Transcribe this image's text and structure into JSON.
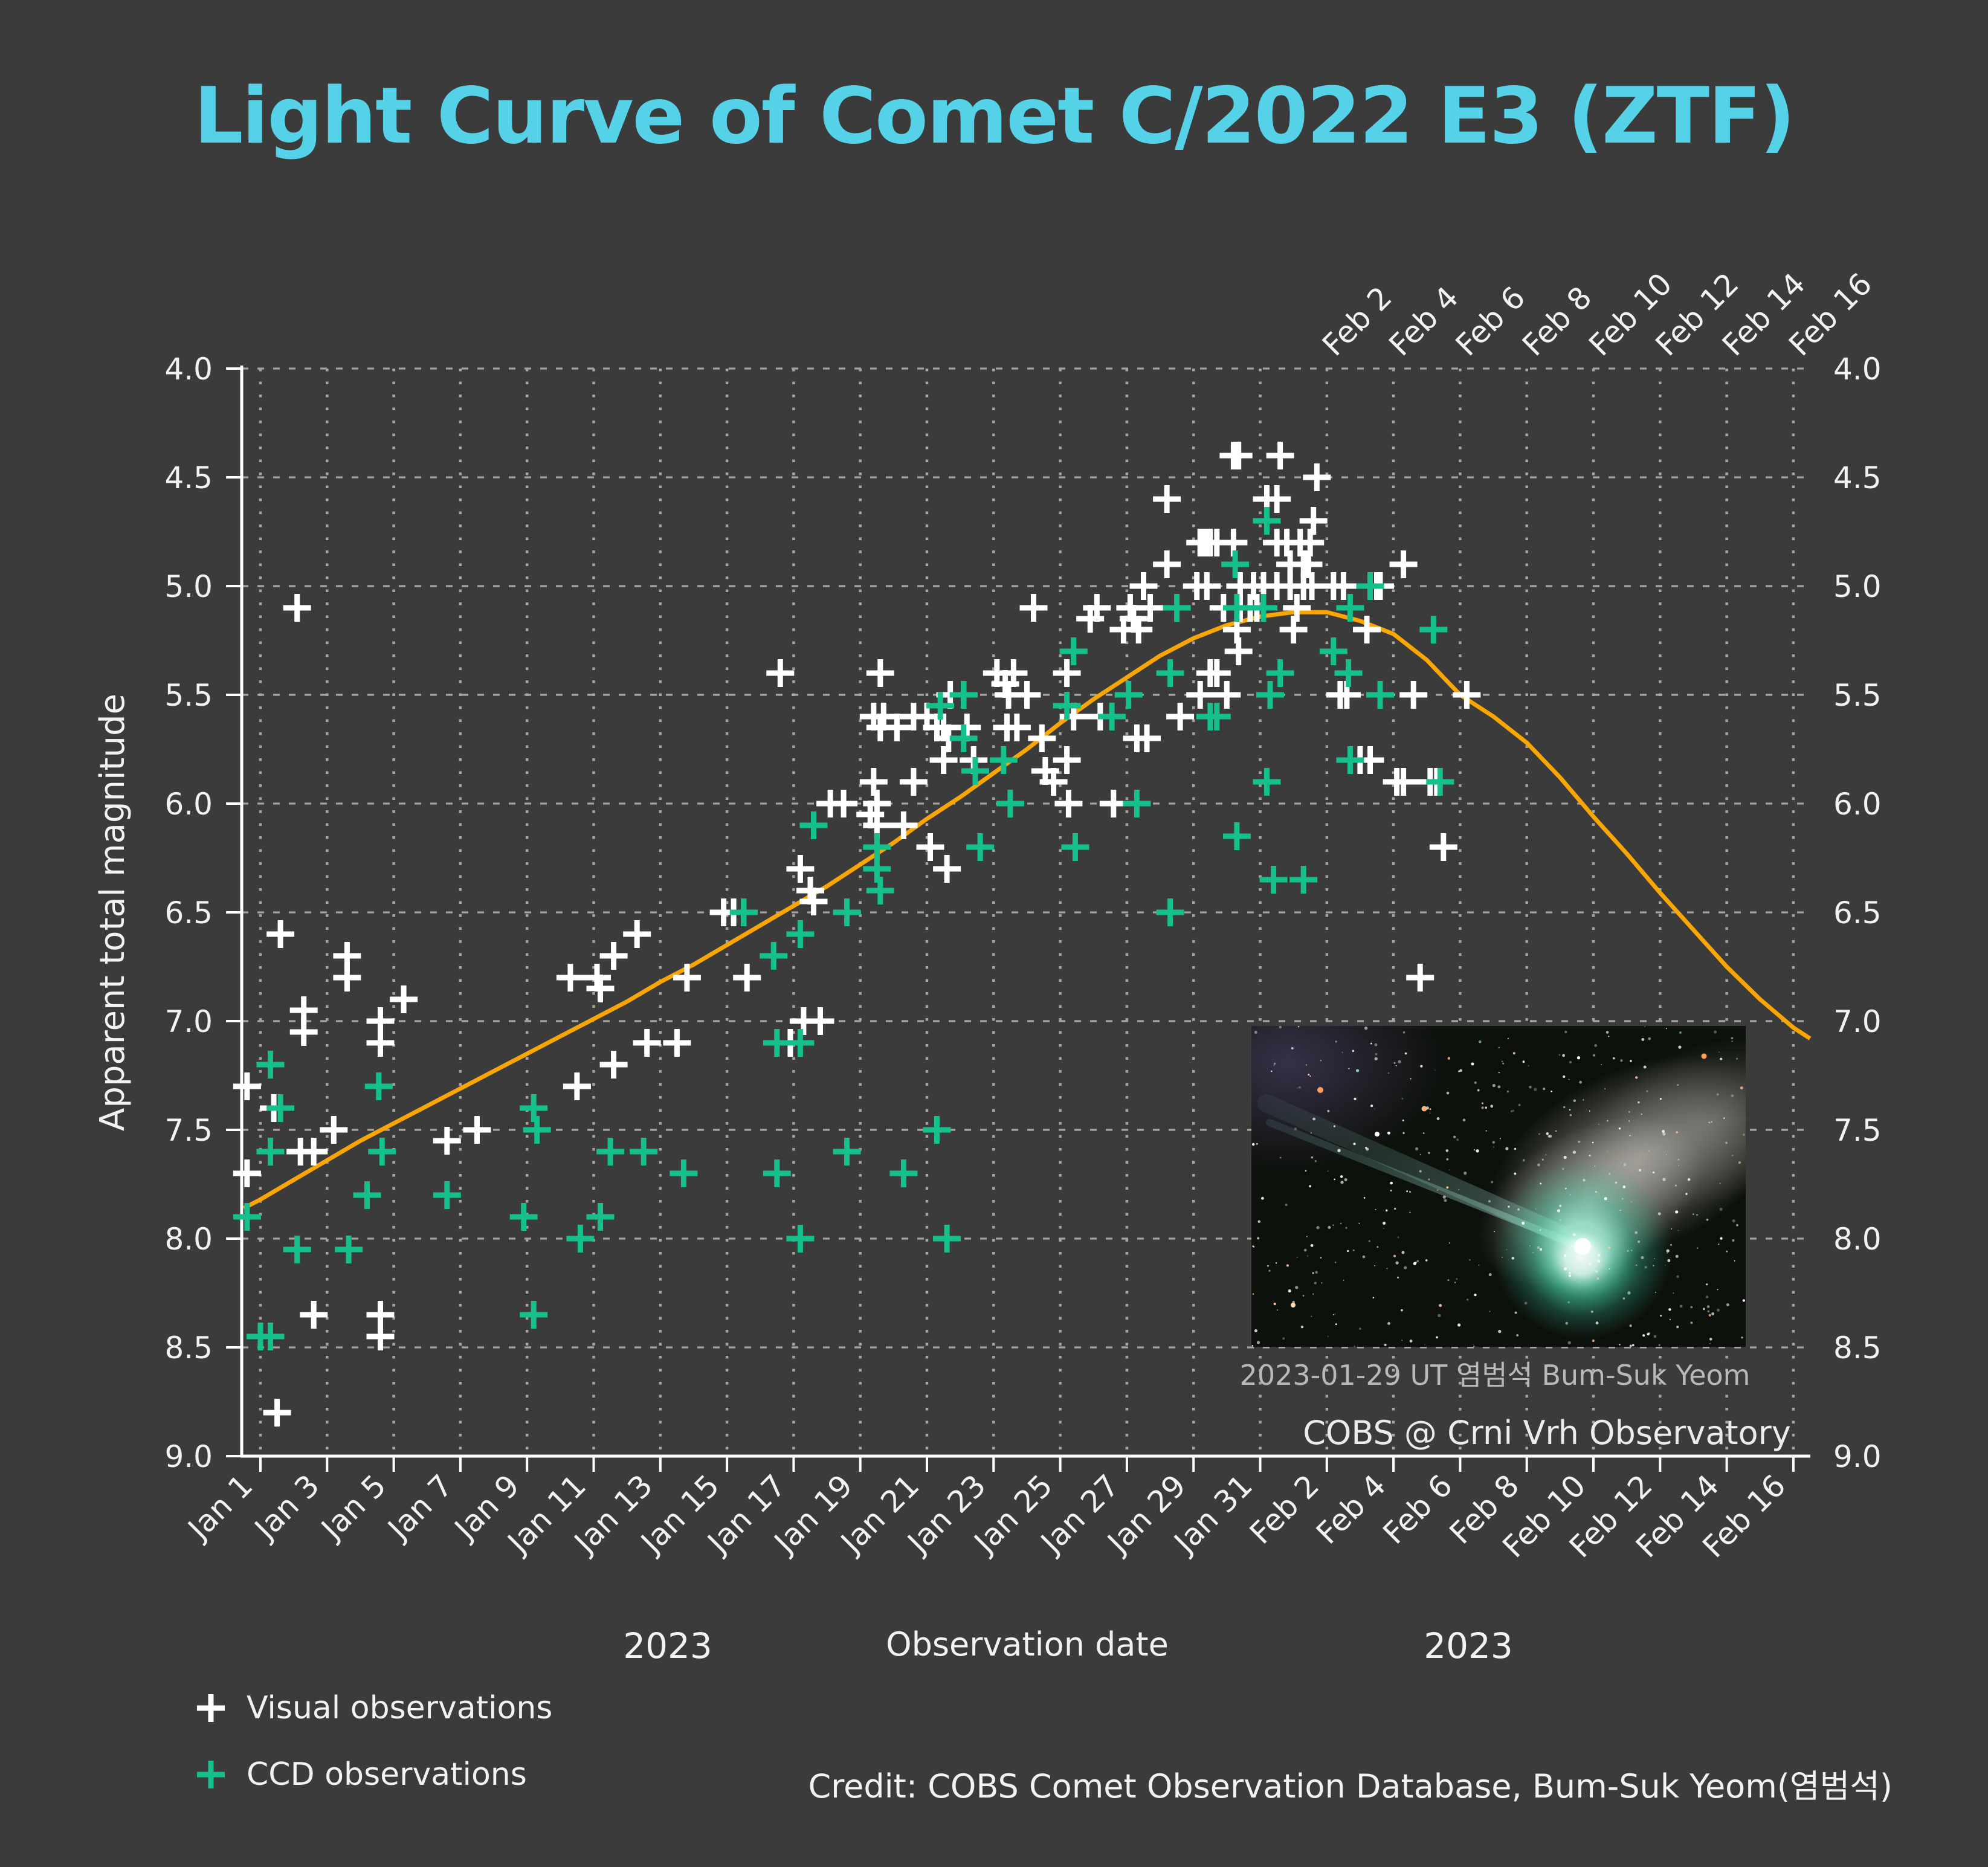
{
  "title": "Light Curve of Comet C/2022 E3 (ZTF)",
  "credit": "Credit: COBS Comet Observation Database, Bum-Suk Yeom(염범석)",
  "legend": [
    {
      "label": "Visual observations",
      "marker": "+",
      "color": "#FFFFFF"
    },
    {
      "label": "CCD observations",
      "marker": "+",
      "color": "#15C08C"
    }
  ],
  "inset": {
    "caption_line1": "2023-01-29 UT  염범석  Bum-Suk Yeom",
    "caption_line2": "COBS @ Crni Vrh Observatory"
  },
  "colors": {
    "background": "#3B3B3B",
    "foreground": "#F2F2F2",
    "grid": "#A8A39C",
    "title": "#55D2E8",
    "visual_marker": "#FFFFFF",
    "ccd_marker": "#15C08C",
    "fit_curve": "#F9A602",
    "caption_gray": "#B9B9B9"
  },
  "chart_data": {
    "type": "scatter",
    "title": "Light Curve of Comet C/2022 E3 (ZTF)",
    "xlabel": "Observation date",
    "ylabel": "Apparent total magnitude",
    "x_unit": "day number of 2023 (Jan 1 = 1, Feb 16 = 47)",
    "xlim": [
      0.44,
      47.56
    ],
    "ylim": [
      9.0,
      4.0
    ],
    "y_axis_inverted": true,
    "grid": true,
    "legend_position": "bottom-left",
    "year_labels": [
      "2023",
      "2023"
    ],
    "x_tick_days": [
      1,
      3,
      5,
      7,
      9,
      11,
      13,
      15,
      17,
      19,
      21,
      23,
      25,
      27,
      29,
      31,
      33,
      35,
      37,
      39,
      41,
      43,
      45,
      47
    ],
    "x_tick_labels": [
      "Jan 1",
      "Jan 3",
      "Jan 5",
      "Jan 7",
      "Jan 9",
      "Jan 11",
      "Jan 13",
      "Jan 15",
      "Jan 17",
      "Jan 19",
      "Jan 21",
      "Jan 23",
      "Jan 25",
      "Jan 27",
      "Jan 29",
      "Jan 31",
      "Feb 2",
      "Feb 4",
      "Feb 6",
      "Feb 8",
      "Feb 10",
      "Feb 12",
      "Feb 14",
      "Feb 16"
    ],
    "top_tick_days": [
      33,
      35,
      37,
      39,
      41,
      43,
      45,
      47
    ],
    "top_tick_labels": [
      "Feb 2",
      "Feb 4",
      "Feb 6",
      "Feb 8",
      "Feb 10",
      "Feb 12",
      "Feb 14",
      "Feb 16"
    ],
    "y_ticks": [
      "4.0",
      "4.5",
      "5.0",
      "5.5",
      "6.0",
      "6.5",
      "7.0",
      "7.5",
      "8.0",
      "8.5",
      "9.0"
    ],
    "series": [
      {
        "name": "Visual observations",
        "marker": "+",
        "color": "#FFFFFF",
        "points": [
          [
            0.6,
            7.3
          ],
          [
            0.6,
            7.7
          ],
          [
            1.4,
            7.4
          ],
          [
            1.5,
            8.8
          ],
          [
            1.6,
            6.6
          ],
          [
            2.1,
            5.1
          ],
          [
            2.2,
            7.6
          ],
          [
            2.3,
            6.95
          ],
          [
            2.3,
            7.05
          ],
          [
            2.6,
            7.6
          ],
          [
            2.6,
            8.35
          ],
          [
            3.2,
            7.5
          ],
          [
            3.6,
            6.7
          ],
          [
            3.6,
            6.8
          ],
          [
            4.6,
            7.0
          ],
          [
            4.6,
            7.1
          ],
          [
            4.6,
            8.35
          ],
          [
            4.6,
            8.45
          ],
          [
            5.3,
            6.9
          ],
          [
            6.6,
            7.55
          ],
          [
            7.5,
            7.5
          ],
          [
            10.3,
            6.8
          ],
          [
            10.5,
            7.3
          ],
          [
            11.1,
            6.8
          ],
          [
            11.2,
            6.85
          ],
          [
            11.6,
            6.7
          ],
          [
            11.6,
            7.2
          ],
          [
            12.3,
            6.6
          ],
          [
            12.6,
            7.1
          ],
          [
            13.5,
            7.1
          ],
          [
            13.8,
            6.8
          ],
          [
            14.9,
            6.5
          ],
          [
            15.2,
            6.5
          ],
          [
            15.5,
            6.5
          ],
          [
            15.6,
            6.8
          ],
          [
            16.6,
            5.4
          ],
          [
            16.9,
            7.1
          ],
          [
            17.2,
            6.3
          ],
          [
            17.3,
            7.0
          ],
          [
            17.5,
            6.4
          ],
          [
            17.6,
            6.45
          ],
          [
            17.8,
            7.0
          ],
          [
            18.1,
            6.0
          ],
          [
            18.5,
            6.0
          ],
          [
            19.3,
            6.05
          ],
          [
            19.4,
            5.6
          ],
          [
            19.4,
            5.9
          ],
          [
            19.5,
            6.0
          ],
          [
            19.5,
            6.1
          ],
          [
            19.6,
            5.4
          ],
          [
            19.6,
            5.65
          ],
          [
            19.7,
            5.6
          ],
          [
            20.1,
            5.65
          ],
          [
            20.3,
            6.1
          ],
          [
            20.6,
            5.6
          ],
          [
            20.6,
            5.9
          ],
          [
            21.0,
            5.6
          ],
          [
            21.1,
            6.2
          ],
          [
            21.3,
            5.65
          ],
          [
            21.5,
            5.65
          ],
          [
            21.5,
            5.8
          ],
          [
            21.65,
            5.7
          ],
          [
            21.7,
            5.5
          ],
          [
            21.6,
            6.3
          ],
          [
            22.1,
            5.5
          ],
          [
            22.2,
            5.65
          ],
          [
            22.4,
            5.8
          ],
          [
            23.1,
            5.4
          ],
          [
            23.35,
            5.45
          ],
          [
            23.4,
            5.65
          ],
          [
            23.45,
            5.5
          ],
          [
            23.6,
            5.4
          ],
          [
            23.7,
            5.65
          ],
          [
            24.0,
            5.5
          ],
          [
            24.2,
            5.1
          ],
          [
            24.45,
            5.7
          ],
          [
            24.55,
            5.85
          ],
          [
            24.8,
            5.9
          ],
          [
            25.2,
            5.4
          ],
          [
            25.2,
            5.8
          ],
          [
            25.25,
            6.0
          ],
          [
            25.4,
            5.6
          ],
          [
            25.9,
            5.15
          ],
          [
            26.1,
            5.1
          ],
          [
            26.2,
            5.6
          ],
          [
            26.6,
            6.0
          ],
          [
            26.9,
            5.2
          ],
          [
            27.1,
            5.1
          ],
          [
            27.2,
            5.15
          ],
          [
            27.35,
            5.2
          ],
          [
            27.5,
            5.0
          ],
          [
            27.7,
            5.1
          ],
          [
            27.3,
            5.7
          ],
          [
            27.6,
            5.7
          ],
          [
            28.2,
            4.6
          ],
          [
            28.2,
            4.9
          ],
          [
            28.6,
            5.6
          ],
          [
            29.1,
            5.0
          ],
          [
            29.2,
            4.8
          ],
          [
            29.35,
            4.8
          ],
          [
            29.5,
            4.8
          ],
          [
            29.2,
            5.5
          ],
          [
            29.4,
            5.0
          ],
          [
            29.5,
            5.4
          ],
          [
            29.7,
            5.4
          ],
          [
            29.7,
            4.8
          ],
          [
            29.9,
            5.1
          ],
          [
            30.0,
            5.5
          ],
          [
            30.2,
            4.4
          ],
          [
            30.35,
            4.4
          ],
          [
            30.2,
            4.8
          ],
          [
            30.3,
            5.2
          ],
          [
            30.35,
            5.3
          ],
          [
            30.4,
            5.0
          ],
          [
            30.4,
            5.1
          ],
          [
            30.7,
            5.1
          ],
          [
            30.8,
            5.0
          ],
          [
            30.9,
            5.1
          ],
          [
            31.1,
            5.0
          ],
          [
            31.2,
            4.6
          ],
          [
            31.5,
            4.6
          ],
          [
            31.6,
            4.4
          ],
          [
            31.5,
            4.8
          ],
          [
            31.8,
            4.8
          ],
          [
            32.2,
            4.8
          ],
          [
            32.5,
            4.8
          ],
          [
            31.9,
            4.9
          ],
          [
            32.3,
            4.9
          ],
          [
            32.45,
            4.9
          ],
          [
            31.5,
            5.0
          ],
          [
            31.9,
            5.0
          ],
          [
            32.3,
            5.0
          ],
          [
            32.55,
            5.0
          ],
          [
            32.0,
            5.2
          ],
          [
            32.1,
            5.1
          ],
          [
            32.6,
            4.7
          ],
          [
            32.7,
            4.5
          ],
          [
            33.2,
            5.0
          ],
          [
            33.4,
            5.5
          ],
          [
            33.5,
            5.0
          ],
          [
            33.6,
            5.5
          ],
          [
            34.0,
            5.8
          ],
          [
            34.2,
            5.2
          ],
          [
            34.3,
            5.8
          ],
          [
            34.5,
            5.0
          ],
          [
            34.6,
            5.0
          ],
          [
            35.1,
            5.9
          ],
          [
            35.3,
            4.9
          ],
          [
            35.3,
            5.9
          ],
          [
            35.6,
            5.5
          ],
          [
            35.8,
            6.8
          ],
          [
            36.1,
            5.9
          ],
          [
            36.3,
            5.9
          ],
          [
            36.5,
            6.2
          ],
          [
            37.2,
            5.5
          ]
        ]
      },
      {
        "name": "CCD observations",
        "marker": "+",
        "color": "#15C08C",
        "points": [
          [
            0.6,
            7.9
          ],
          [
            1.0,
            8.45
          ],
          [
            1.3,
            7.2
          ],
          [
            1.3,
            7.6
          ],
          [
            1.3,
            8.45
          ],
          [
            1.6,
            7.4
          ],
          [
            2.1,
            8.05
          ],
          [
            3.65,
            8.05
          ],
          [
            4.2,
            7.8
          ],
          [
            4.55,
            7.3
          ],
          [
            4.65,
            7.6
          ],
          [
            6.6,
            7.8
          ],
          [
            8.9,
            7.9
          ],
          [
            9.2,
            7.4
          ],
          [
            9.2,
            8.35
          ],
          [
            9.3,
            7.5
          ],
          [
            10.6,
            8.0
          ],
          [
            11.2,
            7.9
          ],
          [
            11.5,
            7.6
          ],
          [
            12.5,
            7.6
          ],
          [
            13.7,
            7.7
          ],
          [
            15.5,
            6.5
          ],
          [
            16.4,
            6.7
          ],
          [
            16.5,
            7.1
          ],
          [
            16.5,
            7.7
          ],
          [
            17.2,
            6.6
          ],
          [
            17.2,
            7.1
          ],
          [
            17.2,
            8.0
          ],
          [
            17.6,
            6.1
          ],
          [
            18.6,
            6.5
          ],
          [
            18.6,
            7.6
          ],
          [
            19.5,
            6.2
          ],
          [
            19.5,
            6.3
          ],
          [
            19.6,
            6.4
          ],
          [
            20.3,
            7.7
          ],
          [
            21.3,
            7.5
          ],
          [
            21.4,
            5.55
          ],
          [
            21.6,
            8.0
          ],
          [
            22.1,
            5.5
          ],
          [
            22.1,
            5.7
          ],
          [
            22.45,
            5.85
          ],
          [
            22.6,
            6.2
          ],
          [
            23.3,
            5.8
          ],
          [
            23.5,
            6.0
          ],
          [
            25.2,
            5.55
          ],
          [
            25.4,
            5.3
          ],
          [
            25.45,
            6.2
          ],
          [
            26.55,
            5.6
          ],
          [
            27.05,
            5.5
          ],
          [
            27.3,
            6.0
          ],
          [
            28.3,
            5.4
          ],
          [
            28.3,
            6.5
          ],
          [
            28.5,
            5.1
          ],
          [
            29.5,
            5.6
          ],
          [
            29.7,
            5.6
          ],
          [
            30.25,
            4.9
          ],
          [
            30.3,
            5.1
          ],
          [
            30.3,
            6.15
          ],
          [
            31.1,
            5.1
          ],
          [
            31.2,
            4.7
          ],
          [
            31.2,
            5.9
          ],
          [
            31.3,
            5.5
          ],
          [
            31.4,
            6.35
          ],
          [
            31.6,
            5.4
          ],
          [
            32.3,
            6.35
          ],
          [
            33.2,
            5.3
          ],
          [
            33.65,
            5.4
          ],
          [
            33.7,
            5.1
          ],
          [
            33.7,
            5.8
          ],
          [
            34.3,
            5.0
          ],
          [
            34.6,
            5.5
          ],
          [
            36.2,
            5.2
          ],
          [
            36.4,
            5.9
          ]
        ]
      }
    ],
    "fit_curve": {
      "name": "fitted light curve",
      "color": "#F9A602",
      "points": [
        [
          0.5,
          7.86
        ],
        [
          1,
          7.82
        ],
        [
          2,
          7.73
        ],
        [
          3,
          7.64
        ],
        [
          4,
          7.55
        ],
        [
          5,
          7.47
        ],
        [
          6,
          7.39
        ],
        [
          7,
          7.31
        ],
        [
          8,
          7.23
        ],
        [
          9,
          7.15
        ],
        [
          10,
          7.07
        ],
        [
          11,
          6.99
        ],
        [
          12,
          6.91
        ],
        [
          13,
          6.82
        ],
        [
          14,
          6.74
        ],
        [
          15,
          6.65
        ],
        [
          16,
          6.56
        ],
        [
          17,
          6.47
        ],
        [
          18,
          6.38
        ],
        [
          19,
          6.28
        ],
        [
          20,
          6.18
        ],
        [
          21,
          6.07
        ],
        [
          22,
          5.97
        ],
        [
          23,
          5.86
        ],
        [
          24,
          5.75
        ],
        [
          25,
          5.63
        ],
        [
          26,
          5.52
        ],
        [
          27,
          5.42
        ],
        [
          28,
          5.32
        ],
        [
          29,
          5.24
        ],
        [
          30,
          5.18
        ],
        [
          31,
          5.14
        ],
        [
          32,
          5.12
        ],
        [
          33,
          5.12
        ],
        [
          34,
          5.16
        ],
        [
          35,
          5.22
        ],
        [
          36,
          5.34
        ],
        [
          37,
          5.5
        ],
        [
          38,
          5.6
        ],
        [
          39,
          5.72
        ],
        [
          40,
          5.88
        ],
        [
          41,
          6.06
        ],
        [
          42,
          6.23
        ],
        [
          43,
          6.41
        ],
        [
          44,
          6.58
        ],
        [
          45,
          6.75
        ],
        [
          46,
          6.9
        ],
        [
          47,
          7.03
        ],
        [
          47.5,
          7.08
        ]
      ]
    }
  }
}
